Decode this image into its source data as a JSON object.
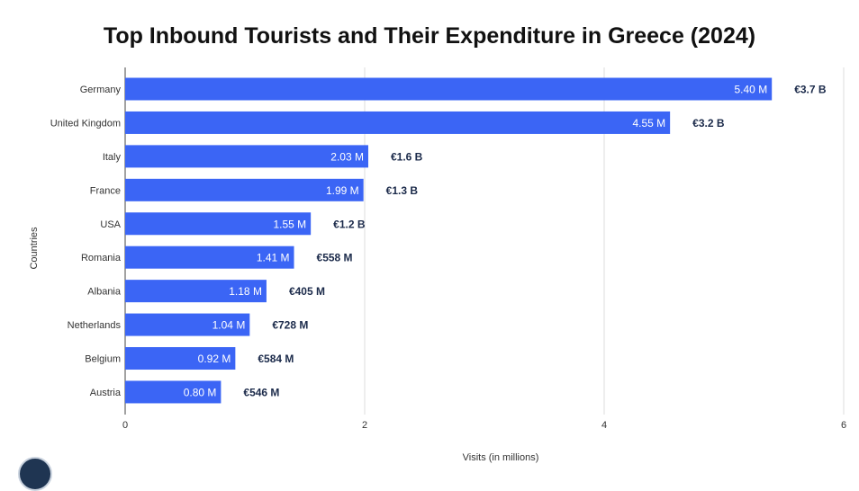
{
  "chart_data": {
    "type": "bar",
    "orientation": "horizontal",
    "title": "Top Inbound Tourists and Their Expenditure in Greece (2024)",
    "xlabel": "Visits (in millions)",
    "ylabel": "Countries",
    "xlim": [
      0,
      6
    ],
    "xticks": [
      0,
      2,
      4,
      6
    ],
    "grid": true,
    "bar_color": "#3b65f5",
    "categories": [
      "Germany",
      "United Kingdom",
      "Italy",
      "France",
      "USA",
      "Romania",
      "Albania",
      "Netherlands",
      "Belgium",
      "Austria"
    ],
    "series": [
      {
        "values": [
          5.4,
          4.55,
          2.03,
          1.99,
          1.55,
          1.41,
          1.18,
          1.04,
          0.92,
          0.8
        ],
        "value_labels": [
          "5.40 M",
          "4.55 M",
          "2.03 M",
          "1.99 M",
          "1.55 M",
          "1.41 M",
          "1.18 M",
          "1.04 M",
          "0.92 M",
          "0.80 M"
        ]
      }
    ],
    "expenditure_labels": [
      "€3.7 B",
      "€3.2 B",
      "€1.6 B",
      "€1.3 B",
      "€1.2 B",
      "€558 M",
      "€405 M",
      "€728 M",
      "€584 M",
      "€546 M"
    ]
  }
}
